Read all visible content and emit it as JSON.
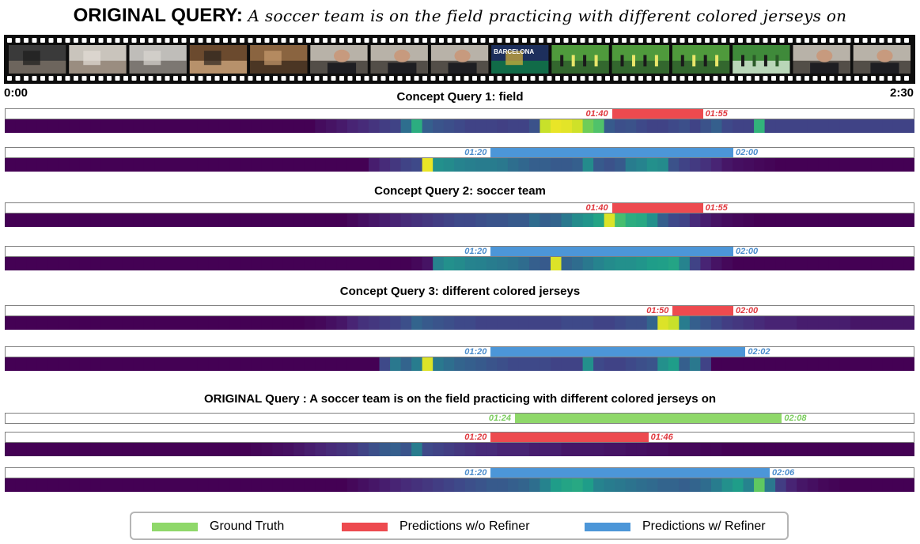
{
  "title": {
    "label": "ORIGINAL QUERY:",
    "query": "A soccer team is on the field practicing with different colored jerseys on"
  },
  "timeline": {
    "start": "0:00",
    "end": "2:30",
    "duration_seconds": 150
  },
  "filmstrip": {
    "frames": [
      {
        "scene": "indoor-room-person"
      },
      {
        "scene": "people-at-table"
      },
      {
        "scene": "office-people"
      },
      {
        "scene": "training-shoes"
      },
      {
        "scene": "indoor-wood"
      },
      {
        "scene": "man-interview"
      },
      {
        "scene": "man-interview"
      },
      {
        "scene": "man-interview"
      },
      {
        "scene": "barcelona-graphic",
        "caption": "BARCELONA"
      },
      {
        "scene": "soccer-players"
      },
      {
        "scene": "soccer-players"
      },
      {
        "scene": "soccer-players"
      },
      {
        "scene": "soccer-goal"
      },
      {
        "scene": "man-interview"
      },
      {
        "scene": "man-interview"
      }
    ]
  },
  "colors": {
    "ground_truth": "#8fd86a",
    "without_refiner": "#ed4a4f",
    "with_refiner": "#4c96d8",
    "ts_red": "#e0383e",
    "ts_blue": "#4a8ccc",
    "ts_green": "#7acc5c"
  },
  "sections": [
    {
      "title": "Concept Query 1: field",
      "rows": [
        {
          "kind": "without_refiner",
          "start_label": "01:40",
          "end_label": "01:55",
          "start_s": 100,
          "end_s": 115,
          "heat": [
            0,
            0,
            0,
            0,
            0,
            0,
            0,
            0,
            0,
            0,
            0,
            0,
            0,
            0,
            0,
            0,
            0,
            0,
            0,
            0,
            0,
            0,
            0,
            0,
            0,
            0,
            0,
            0,
            0,
            0.03,
            0.05,
            0.07,
            0.1,
            0.12,
            0.15,
            0.18,
            0.2,
            0.36,
            0.62,
            0.3,
            0.26,
            0.24,
            0.22,
            0.2,
            0.2,
            0.2,
            0.19,
            0.2,
            0.2,
            0.25,
            0.92,
            0.97,
            0.96,
            0.93,
            0.78,
            0.72,
            0.28,
            0.24,
            0.25,
            0.22,
            0.2,
            0.2,
            0.22,
            0.24,
            0.2,
            0.25,
            0.3,
            0.22,
            0.2,
            0.2,
            0.65,
            0.2,
            0.2,
            0.2,
            0.2,
            0.2,
            0.2,
            0.2,
            0.2,
            0.2,
            0.2,
            0.2,
            0.2,
            0.2,
            0.2
          ]
        },
        {
          "kind": "with_refiner",
          "start_label": "01:20",
          "end_label": "02:00",
          "start_s": 80,
          "end_s": 120,
          "heat": [
            0,
            0,
            0,
            0,
            0,
            0,
            0,
            0,
            0,
            0,
            0,
            0,
            0,
            0,
            0,
            0,
            0,
            0,
            0,
            0,
            0,
            0,
            0,
            0,
            0,
            0,
            0,
            0,
            0,
            0,
            0,
            0,
            0,
            0,
            0.08,
            0.12,
            0.16,
            0.2,
            0.22,
            0.97,
            0.5,
            0.48,
            0.45,
            0.43,
            0.42,
            0.42,
            0.4,
            0.36,
            0.33,
            0.3,
            0.3,
            0.28,
            0.28,
            0.3,
            0.48,
            0.28,
            0.25,
            0.28,
            0.42,
            0.45,
            0.5,
            0.48,
            0.25,
            0.2,
            0.17,
            0.14,
            0.1,
            0.06,
            0.04,
            0.03,
            0.02,
            0.01,
            0,
            0,
            0,
            0,
            0,
            0,
            0,
            0,
            0,
            0,
            0,
            0,
            0
          ]
        }
      ]
    },
    {
      "title": "Concept Query 2: soccer team",
      "rows": [
        {
          "kind": "without_refiner",
          "start_label": "01:40",
          "end_label": "01:55",
          "start_s": 100,
          "end_s": 115,
          "heat": [
            0,
            0,
            0,
            0,
            0,
            0,
            0,
            0,
            0,
            0,
            0,
            0,
            0,
            0,
            0,
            0,
            0,
            0,
            0,
            0,
            0,
            0,
            0,
            0,
            0,
            0,
            0,
            0,
            0,
            0,
            0,
            0,
            0.02,
            0.04,
            0.06,
            0.08,
            0.1,
            0.12,
            0.14,
            0.16,
            0.18,
            0.2,
            0.22,
            0.22,
            0.24,
            0.26,
            0.26,
            0.28,
            0.28,
            0.35,
            0.3,
            0.32,
            0.4,
            0.48,
            0.52,
            0.58,
            0.95,
            0.7,
            0.62,
            0.6,
            0.5,
            0.3,
            0.22,
            0.2,
            0.12,
            0.08,
            0.05,
            0.03,
            0.02,
            0.01,
            0,
            0,
            0,
            0,
            0,
            0,
            0,
            0,
            0,
            0,
            0,
            0,
            0,
            0,
            0
          ]
        },
        {
          "kind": "with_refiner",
          "start_label": "01:20",
          "end_label": "02:00",
          "start_s": 80,
          "end_s": 120,
          "heat": [
            0,
            0,
            0,
            0,
            0,
            0,
            0,
            0,
            0,
            0,
            0,
            0,
            0,
            0,
            0,
            0,
            0,
            0,
            0,
            0,
            0,
            0,
            0,
            0,
            0,
            0,
            0,
            0,
            0,
            0,
            0,
            0,
            0,
            0,
            0,
            0,
            0,
            0,
            0.02,
            0.05,
            0.45,
            0.5,
            0.48,
            0.45,
            0.44,
            0.42,
            0.4,
            0.38,
            0.35,
            0.3,
            0.28,
            0.95,
            0.32,
            0.35,
            0.4,
            0.45,
            0.48,
            0.5,
            0.5,
            0.52,
            0.55,
            0.56,
            0.58,
            0.45,
            0.2,
            0.1,
            0.05,
            0.02,
            0,
            0,
            0,
            0,
            0,
            0,
            0,
            0,
            0,
            0,
            0,
            0,
            0,
            0,
            0,
            0,
            0
          ]
        }
      ]
    },
    {
      "title": "Concept Query 3: different colored jerseys",
      "rows": [
        {
          "kind": "without_refiner",
          "start_label": "01:50",
          "end_label": "02:00",
          "start_s": 110,
          "end_s": 120,
          "heat": [
            0,
            0,
            0,
            0,
            0,
            0,
            0,
            0,
            0,
            0,
            0,
            0,
            0,
            0,
            0,
            0,
            0,
            0,
            0,
            0,
            0,
            0,
            0,
            0,
            0,
            0,
            0,
            0,
            0.01,
            0.02,
            0.04,
            0.06,
            0.1,
            0.14,
            0.16,
            0.18,
            0.2,
            0.24,
            0.32,
            0.28,
            0.26,
            0.24,
            0.22,
            0.22,
            0.2,
            0.2,
            0.2,
            0.2,
            0.2,
            0.2,
            0.2,
            0.2,
            0.22,
            0.22,
            0.22,
            0.2,
            0.2,
            0.22,
            0.24,
            0.24,
            0.32,
            0.95,
            0.92,
            0.42,
            0.3,
            0.26,
            0.22,
            0.18,
            0.16,
            0.14,
            0.12,
            0.1,
            0.1,
            0.1,
            0.08,
            0.08,
            0.08,
            0.08,
            0.08,
            0.06,
            0.06,
            0.06,
            0.06,
            0.06,
            0.06
          ]
        },
        {
          "kind": "with_refiner",
          "start_label": "01:20",
          "end_label": "02:02",
          "start_s": 80,
          "end_s": 122,
          "heat": [
            0,
            0,
            0,
            0,
            0,
            0,
            0,
            0,
            0,
            0,
            0,
            0,
            0,
            0,
            0,
            0,
            0,
            0,
            0,
            0,
            0,
            0,
            0,
            0,
            0,
            0,
            0,
            0,
            0,
            0,
            0,
            0,
            0,
            0,
            0,
            0.22,
            0.4,
            0.32,
            0.42,
            0.95,
            0.4,
            0.36,
            0.32,
            0.3,
            0.28,
            0.26,
            0.24,
            0.22,
            0.22,
            0.22,
            0.22,
            0.2,
            0.2,
            0.2,
            0.5,
            0.22,
            0.2,
            0.2,
            0.22,
            0.24,
            0.26,
            0.5,
            0.55,
            0.3,
            0.4,
            0.2,
            0,
            0,
            0,
            0,
            0,
            0,
            0,
            0,
            0,
            0,
            0,
            0,
            0,
            0,
            0,
            0,
            0,
            0,
            0
          ]
        }
      ]
    },
    {
      "title": "ORIGINAL Query : A soccer team is on the field practicing with different colored jerseys on",
      "rows": [
        {
          "kind": "ground_truth",
          "start_label": "01:24",
          "end_label": "02:08",
          "start_s": 84,
          "end_s": 128,
          "heat": null
        },
        {
          "kind": "without_refiner",
          "start_label": "01:20",
          "end_label": "01:46",
          "start_s": 80,
          "end_s": 106,
          "heat": [
            0,
            0,
            0,
            0,
            0,
            0,
            0,
            0,
            0,
            0,
            0,
            0,
            0,
            0,
            0,
            0,
            0,
            0,
            0,
            0,
            0,
            0,
            0,
            0.01,
            0.02,
            0.03,
            0.04,
            0.06,
            0.08,
            0.1,
            0.12,
            0.14,
            0.16,
            0.2,
            0.24,
            0.28,
            0.3,
            0.26,
            0.42,
            0.22,
            0.2,
            0.18,
            0.16,
            0.14,
            0.12,
            0.12,
            0.1,
            0.1,
            0.1,
            0.08,
            0.08,
            0.08,
            0.06,
            0.06,
            0.06,
            0.06,
            0.05,
            0.05,
            0.04,
            0.04,
            0.03,
            0.03,
            0.02,
            0.02,
            0.02,
            0.01,
            0.01,
            0,
            0,
            0,
            0,
            0,
            0,
            0,
            0,
            0,
            0,
            0,
            0,
            0,
            0,
            0,
            0,
            0,
            0
          ]
        },
        {
          "kind": "with_refiner",
          "start_label": "01:20",
          "end_label": "02:06",
          "start_s": 80,
          "end_s": 126,
          "heat": [
            0,
            0,
            0,
            0,
            0,
            0,
            0,
            0,
            0,
            0,
            0,
            0,
            0,
            0,
            0,
            0,
            0,
            0,
            0,
            0,
            0,
            0,
            0,
            0,
            0,
            0,
            0,
            0,
            0,
            0,
            0,
            0,
            0.02,
            0.04,
            0.06,
            0.08,
            0.1,
            0.12,
            0.14,
            0.16,
            0.18,
            0.2,
            0.22,
            0.24,
            0.26,
            0.28,
            0.28,
            0.3,
            0.32,
            0.36,
            0.45,
            0.55,
            0.58,
            0.6,
            0.55,
            0.45,
            0.42,
            0.4,
            0.38,
            0.36,
            0.34,
            0.32,
            0.32,
            0.3,
            0.32,
            0.35,
            0.42,
            0.5,
            0.55,
            0.45,
            0.75,
            0.4,
            0.18,
            0.1,
            0.06,
            0.04,
            0.02,
            0.01,
            0,
            0,
            0,
            0,
            0,
            0,
            0
          ]
        }
      ]
    }
  ],
  "legend": [
    {
      "kind": "ground_truth",
      "label": "Ground Truth"
    },
    {
      "kind": "without_refiner",
      "label": "Predictions w/o Refiner"
    },
    {
      "kind": "with_refiner",
      "label": "Predictions w/ Refiner"
    }
  ]
}
